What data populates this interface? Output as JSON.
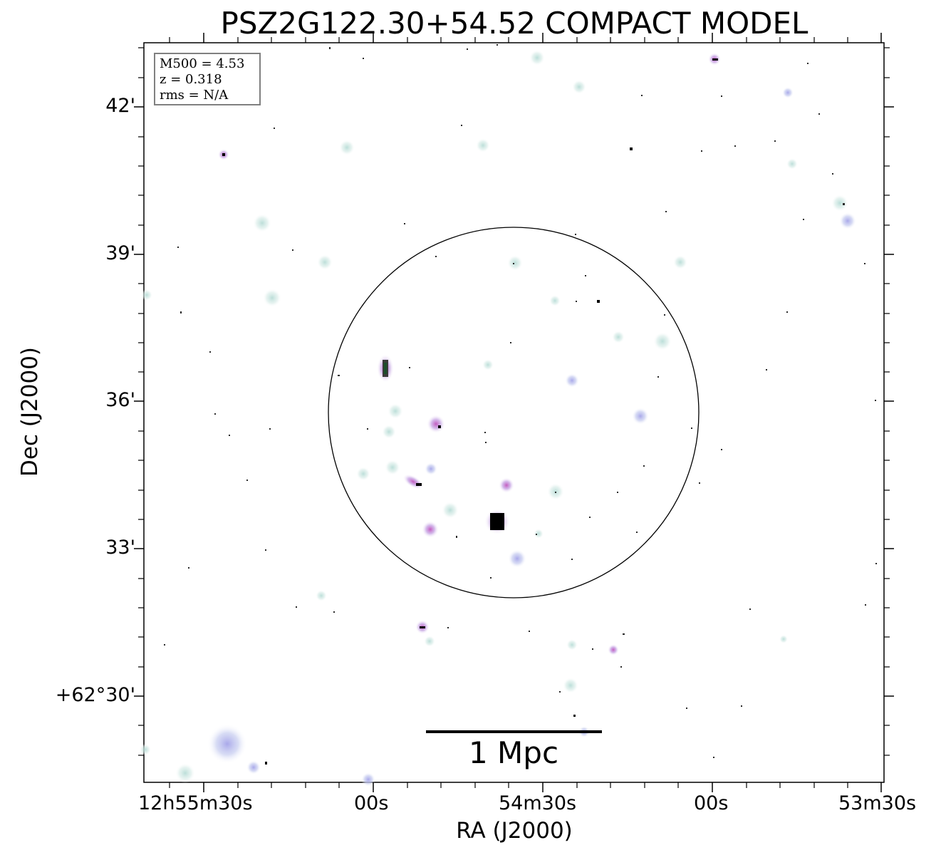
{
  "title": "PSZ2G122.30+54.52 COMPACT MODEL",
  "infobox": {
    "m500": "M500 = 4.53",
    "z": "z = 0.318",
    "rms": "rms = N/A"
  },
  "axes": {
    "x_title": "RA (J2000)",
    "y_title": "Dec (J2000)",
    "x_ticks": [
      "12h55m30s",
      "00s",
      "54m30s",
      "00s",
      "53m30s"
    ],
    "y_ticks": [
      "42'",
      "39'",
      "36'",
      "33'",
      "+62°30'"
    ]
  },
  "scalebar": {
    "label": "1 Mpc"
  },
  "colors": {
    "circle": "#000000",
    "halo": "#d8ece8",
    "source": "#c9a9e6",
    "core": "#000000"
  }
}
